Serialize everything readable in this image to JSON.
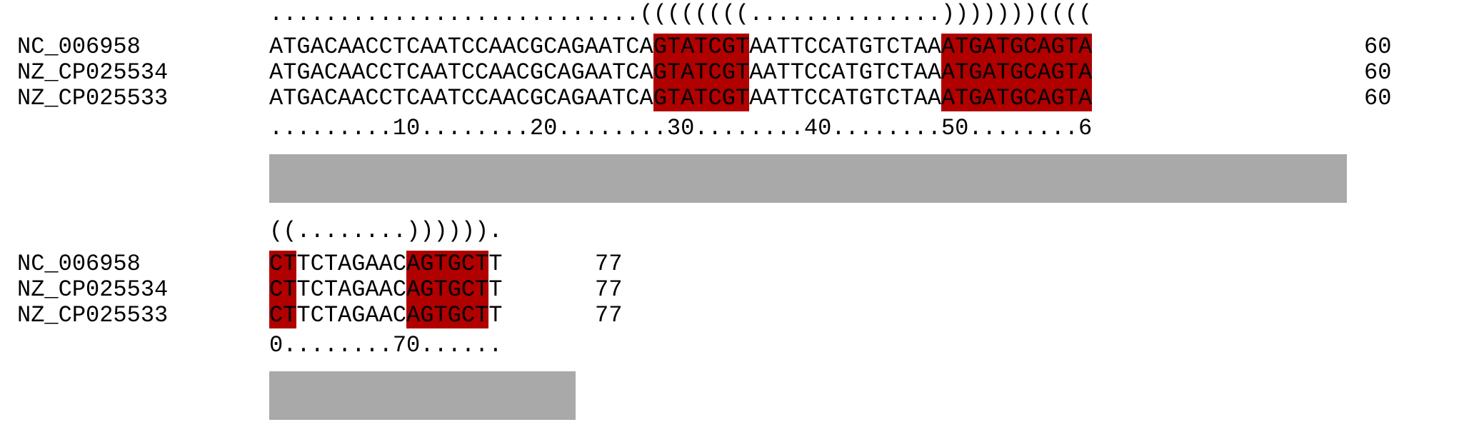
{
  "blocks": [
    {
      "structure": "...........................((((((((..............)))))))((((",
      "rows": [
        {
          "name": "NC_006958",
          "segments": [
            "ATGACAACCTCAATCCAACGCAGAATCA",
            "GTATCGT",
            "AATTCCATGTCTAA",
            "ATGATGCAGTA"
          ],
          "count": "60"
        },
        {
          "name": "NZ_CP025534",
          "segments": [
            "ATGACAACCTCAATCCAACGCAGAATCA",
            "GTATCGT",
            "AATTCCATGTCTAA",
            "ATGATGCAGTA"
          ],
          "count": "60"
        },
        {
          "name": "NZ_CP025533",
          "segments": [
            "ATGACAACCTCAATCCAACGCAGAATCA",
            "GTATCGT",
            "AATTCCATGTCTAA",
            "ATGATGCAGTA"
          ],
          "count": "60"
        }
      ],
      "ruler": ".........10........20........30........40........50........6"
    },
    {
      "structure": "((........)))))).",
      "rows": [
        {
          "name": "NC_006958",
          "segments": [
            "",
            "CT",
            "TCTAGAAC",
            "AGTGCT",
            "T"
          ],
          "count": "77"
        },
        {
          "name": "NZ_CP025534",
          "segments": [
            "",
            "CT",
            "TCTAGAAC",
            "AGTGCT",
            "T"
          ],
          "count": "77"
        },
        {
          "name": "NZ_CP025533",
          "segments": [
            "",
            "CT",
            "TCTAGAAC",
            "AGTGCT",
            "T"
          ],
          "count": "77"
        }
      ],
      "ruler": "0........70......"
    }
  ],
  "colors": {
    "highlight": "#b00000",
    "bar": "#a9a9a9"
  }
}
